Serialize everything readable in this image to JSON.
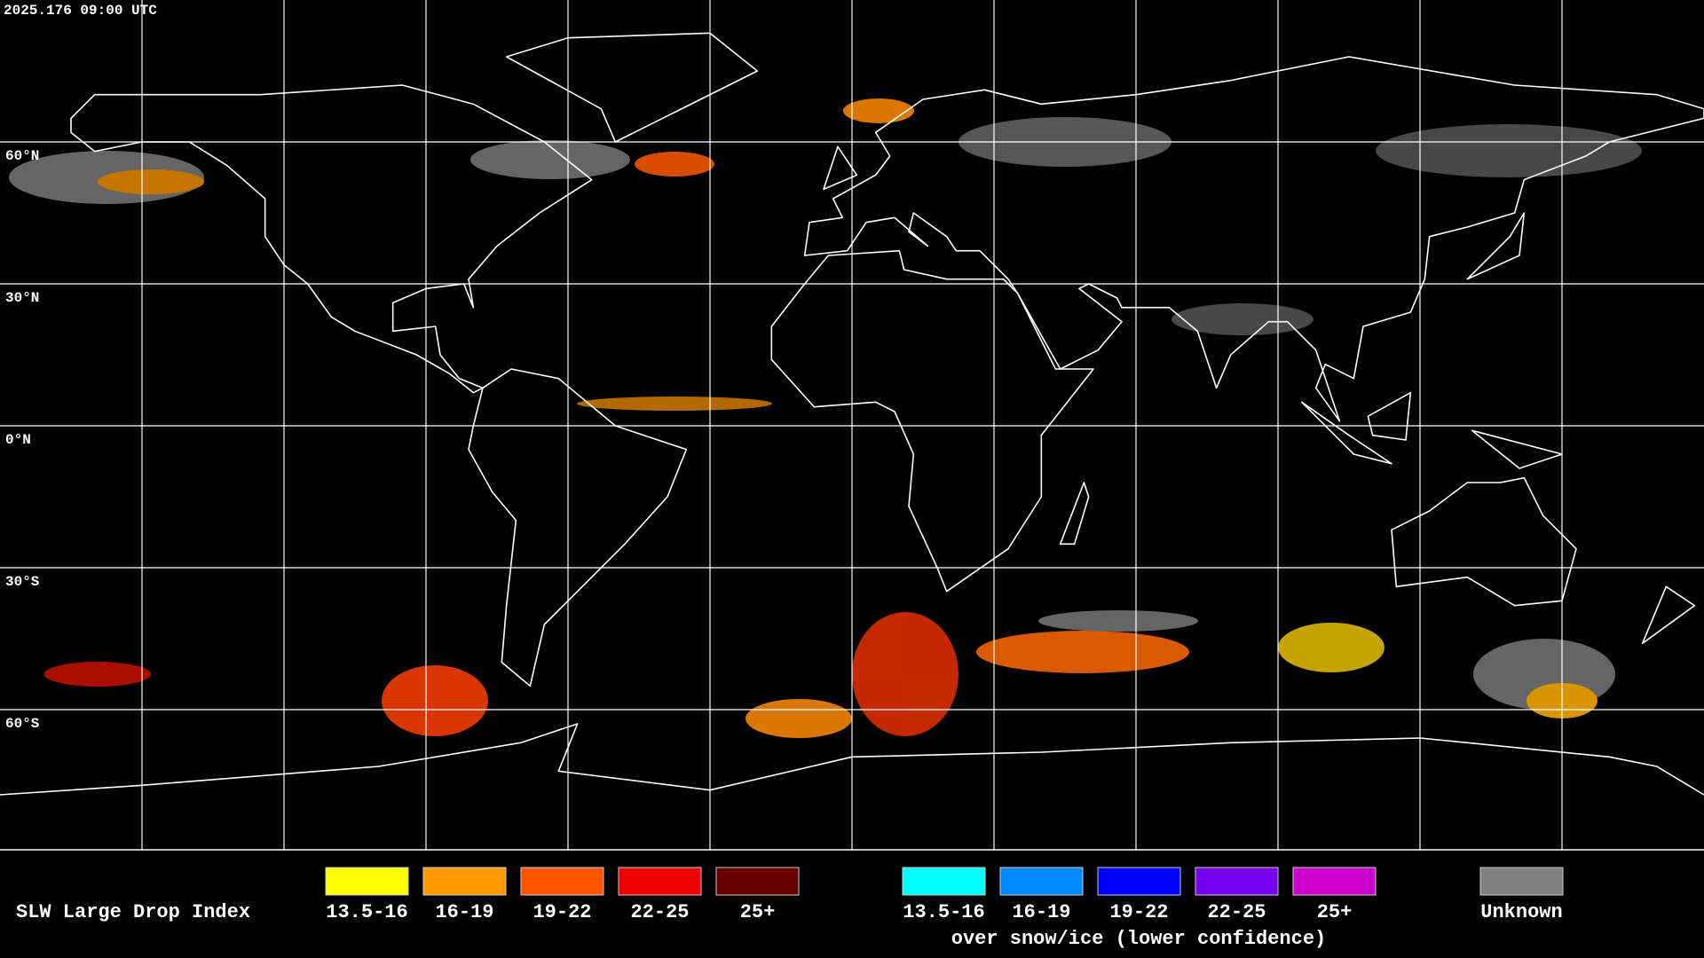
{
  "timestamp": "2025.176 09:00 UTC",
  "lat_labels": [
    "60°N",
    "30°N",
    "0°N",
    "30°S",
    "60°S"
  ],
  "legend": {
    "title": "SLW Large Drop Index",
    "items": [
      {
        "label": "13.5-16",
        "color": "#ffff00"
      },
      {
        "label": "16-19",
        "color": "#ff9900"
      },
      {
        "label": "19-22",
        "color": "#ff5500"
      },
      {
        "label": "22-25",
        "color": "#ee0000"
      },
      {
        "label": "25+",
        "color": "#660000"
      }
    ],
    "snow_items": [
      {
        "label": "13.5-16",
        "color": "#00ffff"
      },
      {
        "label": "16-19",
        "color": "#0088ff"
      },
      {
        "label": "19-22",
        "color": "#0000ff"
      },
      {
        "label": "22-25",
        "color": "#7700ee"
      },
      {
        "label": "25+",
        "color": "#cc00cc"
      }
    ],
    "snow_note": "over snow/ice (lower confidence)",
    "unknown": {
      "label": "Unknown",
      "color": "#808080"
    }
  }
}
